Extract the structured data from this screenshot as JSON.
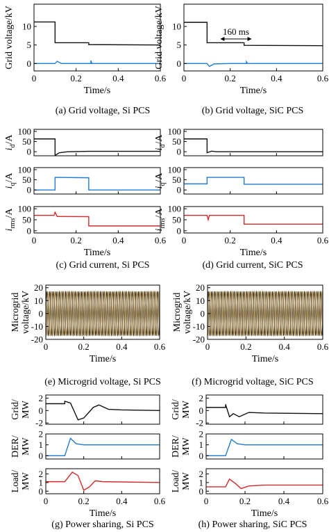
{
  "colors": {
    "black": "#111111",
    "blue": "#1f7bd1",
    "red": "#d42a2a",
    "tan": "#c8a86a"
  },
  "chart_data": [
    {
      "id": "a",
      "type": "line",
      "caption": "(a) Grid voltage, Si PCS",
      "panels": [
        {
          "ylabel": "Grid voltage/kV",
          "ylim": [
            -2,
            16
          ],
          "yticks": [
            0,
            5,
            10
          ],
          "xlim": [
            0,
            0.6
          ],
          "xticks": [
            0,
            0.2,
            0.4,
            0.6
          ],
          "xlabel": "Time/s",
          "series": [
            {
              "color": "black",
              "points": [
                [
                  0,
                  11.2
                ],
                [
                  0.1,
                  11.2
                ],
                [
                  0.1,
                  5.6
                ],
                [
                  0.26,
                  5.6
                ],
                [
                  0.26,
                  5.1
                ],
                [
                  0.6,
                  5.0
                ]
              ]
            },
            {
              "color": "blue",
              "points": [
                [
                  0,
                  0
                ],
                [
                  0.1,
                  0
                ],
                [
                  0.11,
                  0.6
                ],
                [
                  0.13,
                  0
                ],
                [
                  0.27,
                  0
                ],
                [
                  0.27,
                  0.8
                ],
                [
                  0.275,
                  0
                ],
                [
                  0.6,
                  0
                ]
              ]
            }
          ]
        }
      ]
    },
    {
      "id": "b",
      "type": "line",
      "caption": "(b) Grid voltage, SiC PCS",
      "annotation": "160 ms",
      "panels": [
        {
          "ylabel": "Grid voltage/kV",
          "ylim": [
            -2,
            16
          ],
          "yticks": [
            0,
            5,
            10
          ],
          "xlim": [
            0,
            0.6
          ],
          "xticks": [
            0,
            0.2,
            0.4,
            0.6
          ],
          "xlabel": "Time/s",
          "series": [
            {
              "color": "black",
              "points": [
                [
                  0,
                  11.1
                ],
                [
                  0.1,
                  11.1
                ],
                [
                  0.1,
                  5.6
                ],
                [
                  0.26,
                  5.6
                ],
                [
                  0.26,
                  4.9
                ],
                [
                  0.6,
                  4.8
                ]
              ]
            },
            {
              "color": "blue",
              "points": [
                [
                  0,
                  0
                ],
                [
                  0.1,
                  0
                ],
                [
                  0.11,
                  -0.8
                ],
                [
                  0.13,
                  -0.1
                ],
                [
                  0.2,
                  0
                ],
                [
                  0.27,
                  0
                ],
                [
                  0.27,
                  0.5
                ],
                [
                  0.275,
                  0
                ],
                [
                  0.6,
                  0
                ]
              ]
            }
          ]
        }
      ]
    },
    {
      "id": "c",
      "type": "line",
      "caption": "(c) Grid current, Si PCS",
      "panels": [
        {
          "ylabel": "id/A",
          "ylim": [
            -20,
            110
          ],
          "yticks": [
            0,
            50,
            100
          ],
          "xlim": [
            0,
            0.6
          ],
          "series": [
            {
              "color": "black",
              "points": [
                [
                  0,
                  63
                ],
                [
                  0.1,
                  63
                ],
                [
                  0.1,
                  -18
                ],
                [
                  0.12,
                  -5
                ],
                [
                  0.16,
                  0
                ],
                [
                  0.26,
                  2
                ],
                [
                  0.6,
                  2
                ]
              ]
            }
          ]
        },
        {
          "ylabel": "iq/A",
          "ylim": [
            -20,
            110
          ],
          "yticks": [
            0,
            50,
            100
          ],
          "xlim": [
            0,
            0.6
          ],
          "series": [
            {
              "color": "blue",
              "points": [
                [
                  0,
                  0
                ],
                [
                  0.1,
                  0
                ],
                [
                  0.1,
                  62
                ],
                [
                  0.26,
                  60
                ],
                [
                  0.26,
                  0
                ],
                [
                  0.6,
                  0
                ]
              ]
            }
          ]
        },
        {
          "ylabel": "irms/A",
          "ylim": [
            -10,
            110
          ],
          "yticks": [
            0,
            50,
            100
          ],
          "xlim": [
            0,
            0.6
          ],
          "xticks": [
            0,
            0.2,
            0.4,
            0.6
          ],
          "xlabel": "Time/s",
          "series": [
            {
              "color": "red",
              "points": [
                [
                  0,
                  70
                ],
                [
                  0.095,
                  70
                ],
                [
                  0.1,
                  84
                ],
                [
                  0.11,
                  65
                ],
                [
                  0.26,
                  64
                ],
                [
                  0.26,
                  22
                ],
                [
                  0.6,
                  22
                ]
              ]
            }
          ]
        }
      ]
    },
    {
      "id": "d",
      "type": "line",
      "caption": "(d) Grid current, SiC PCS",
      "panels": [
        {
          "ylabel": "id/A",
          "ylim": [
            -20,
            110
          ],
          "yticks": [
            0,
            50,
            100
          ],
          "xlim": [
            0,
            0.6
          ],
          "series": [
            {
              "color": "black",
              "points": [
                [
                  0,
                  63
                ],
                [
                  0.1,
                  63
                ],
                [
                  0.1,
                  -5
                ],
                [
                  0.12,
                  3
                ],
                [
                  0.14,
                  0
                ],
                [
                  0.6,
                  0
                ]
              ]
            }
          ]
        },
        {
          "ylabel": "iq/A",
          "ylim": [
            -20,
            110
          ],
          "yticks": [
            0,
            50,
            100
          ],
          "xlim": [
            0,
            0.6
          ],
          "series": [
            {
              "color": "blue",
              "points": [
                [
                  0,
                  30
                ],
                [
                  0.1,
                  30
                ],
                [
                  0.1,
                  62
                ],
                [
                  0.26,
                  62
                ],
                [
                  0.26,
                  28
                ],
                [
                  0.6,
                  28
                ]
              ]
            }
          ]
        },
        {
          "ylabel": "irms/A",
          "ylim": [
            -10,
            110
          ],
          "yticks": [
            0,
            50,
            100
          ],
          "xlim": [
            0,
            0.6
          ],
          "xticks": [
            0,
            0.2,
            0.4,
            0.6
          ],
          "xlabel": "Time/s",
          "series": [
            {
              "color": "red",
              "points": [
                [
                  0,
                  70
                ],
                [
                  0.1,
                  70
                ],
                [
                  0.105,
                  50
                ],
                [
                  0.11,
                  70
                ],
                [
                  0.26,
                  70
                ],
                [
                  0.26,
                  30
                ],
                [
                  0.6,
                  30
                ]
              ]
            }
          ]
        }
      ]
    },
    {
      "id": "e",
      "type": "line",
      "caption": "(e) Microgrid voltage, Si PCS",
      "panels": [
        {
          "ylabel": "Microgrid voltage/kV",
          "ylim": [
            -20,
            22
          ],
          "yticks": [
            -20,
            -10,
            0,
            10,
            20
          ],
          "xlim": [
            0,
            0.6
          ],
          "xticks": [
            0,
            0.2,
            0.4,
            0.6
          ],
          "xlabel": "Time/s",
          "series": [
            {
              "color": "tan",
              "waveform": "three-phase",
              "amplitude": 17,
              "frequency_hz": 60
            }
          ]
        }
      ]
    },
    {
      "id": "f",
      "type": "line",
      "caption": "(f) Microgrid voltage, SiC PCS",
      "panels": [
        {
          "ylabel": "Microgrid voltage/kV",
          "ylim": [
            -20,
            22
          ],
          "yticks": [
            -20,
            -10,
            0,
            10,
            20
          ],
          "xlim": [
            0,
            0.6
          ],
          "xticks": [
            0,
            0.2,
            0.4,
            0.6
          ],
          "xlabel": "Time/s",
          "series": [
            {
              "color": "tan",
              "waveform": "three-phase",
              "amplitude": 17,
              "frequency_hz": 60
            }
          ]
        }
      ]
    },
    {
      "id": "g",
      "type": "line",
      "caption": "(g) Power sharing, Si PCS",
      "panels": [
        {
          "ylabel": "Grid/ MW",
          "ylim": [
            -2.2,
            2.5
          ],
          "yticks": [
            -2,
            0,
            2
          ],
          "xlim": [
            0,
            0.6
          ],
          "series": [
            {
              "color": "black",
              "points": [
                [
                  0,
                  1.1
                ],
                [
                  0.1,
                  1.1
                ],
                [
                  0.1,
                  1.5
                ],
                [
                  0.13,
                  1.2
                ],
                [
                  0.17,
                  -1.5
                ],
                [
                  0.2,
                  -1.2
                ],
                [
                  0.25,
                  0.5
                ],
                [
                  0.28,
                  0.9
                ],
                [
                  0.33,
                  0.2
                ],
                [
                  0.4,
                  0.1
                ],
                [
                  0.6,
                  0
                ]
              ]
            }
          ]
        },
        {
          "ylabel": "DER/ MW",
          "ylim": [
            -0.3,
            2.0
          ],
          "yticks": [
            0,
            1,
            2
          ],
          "xlim": [
            0,
            0.6
          ],
          "series": [
            {
              "color": "blue",
              "points": [
                [
                  0,
                  0
                ],
                [
                  0.1,
                  0
                ],
                [
                  0.13,
                  1.6
                ],
                [
                  0.16,
                  1.1
                ],
                [
                  0.2,
                  1.0
                ],
                [
                  0.6,
                  1.0
                ]
              ]
            }
          ]
        },
        {
          "ylabel": "Load/ MW",
          "ylim": [
            -0.3,
            2.6
          ],
          "yticks": [
            0,
            1,
            2
          ],
          "xlim": [
            0,
            0.6
          ],
          "xticks": [
            0,
            0.2,
            0.4,
            0.6
          ],
          "xlabel": "Time/s",
          "series": [
            {
              "color": "red",
              "points": [
                [
                  0,
                  1.1
                ],
                [
                  0.1,
                  1.1
                ],
                [
                  0.14,
                  2.2
                ],
                [
                  0.17,
                  1.8
                ],
                [
                  0.2,
                  0.1
                ],
                [
                  0.23,
                  0.5
                ],
                [
                  0.26,
                  1.2
                ],
                [
                  0.3,
                  1.1
                ],
                [
                  0.6,
                  1.0
                ]
              ]
            }
          ]
        }
      ]
    },
    {
      "id": "h",
      "type": "line",
      "caption": "(h) Power sharing, SiC PCS",
      "panels": [
        {
          "ylabel": "Grid/ MW",
          "ylim": [
            -2.2,
            2.5
          ],
          "yticks": [
            -2,
            0,
            2
          ],
          "xlim": [
            0,
            0.6
          ],
          "series": [
            {
              "color": "black",
              "points": [
                [
                  0,
                  0.5
                ],
                [
                  0.1,
                  0.5
                ],
                [
                  0.1,
                  1.0
                ],
                [
                  0.12,
                  -1.0
                ],
                [
                  0.14,
                  -0.5
                ],
                [
                  0.17,
                  -1.0
                ],
                [
                  0.22,
                  -0.3
                ],
                [
                  0.3,
                  -0.4
                ],
                [
                  0.6,
                  -0.5
                ]
              ]
            }
          ]
        },
        {
          "ylabel": "DER/ MW",
          "ylim": [
            -0.3,
            2.0
          ],
          "yticks": [
            0,
            1,
            2
          ],
          "xlim": [
            0,
            0.6
          ],
          "series": [
            {
              "color": "blue",
              "points": [
                [
                  0,
                  0
                ],
                [
                  0.1,
                  0
                ],
                [
                  0.13,
                  1.5
                ],
                [
                  0.16,
                  1.1
                ],
                [
                  0.2,
                  1.0
                ],
                [
                  0.6,
                  1.0
                ]
              ]
            }
          ]
        },
        {
          "ylabel": "Load/ MW",
          "ylim": [
            -0.3,
            2.6
          ],
          "yticks": [
            0,
            1,
            2
          ],
          "xlim": [
            0,
            0.6
          ],
          "xticks": [
            0,
            0.2,
            0.4,
            0.6
          ],
          "xlabel": "Time/s",
          "series": [
            {
              "color": "red",
              "points": [
                [
                  0,
                  0.5
                ],
                [
                  0.1,
                  0.5
                ],
                [
                  0.12,
                  1.4
                ],
                [
                  0.15,
                  0.9
                ],
                [
                  0.18,
                  0.3
                ],
                [
                  0.22,
                  0.6
                ],
                [
                  0.3,
                  0.7
                ],
                [
                  0.6,
                  0.7
                ]
              ]
            }
          ]
        }
      ]
    }
  ]
}
